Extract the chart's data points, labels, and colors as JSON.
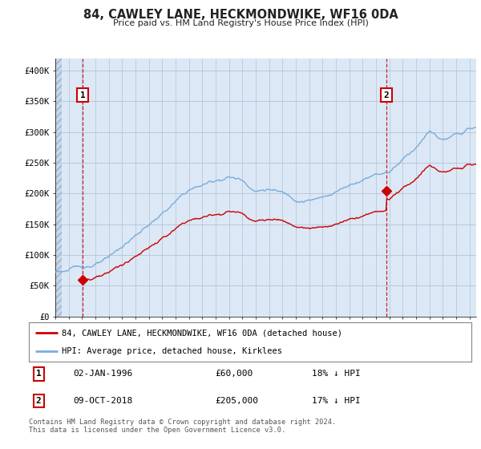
{
  "title": "84, CAWLEY LANE, HECKMONDWIKE, WF16 0DA",
  "subtitle": "Price paid vs. HM Land Registry's House Price Index (HPI)",
  "sale1_date": "02-JAN-1996",
  "sale1_price": 60000,
  "sale1_year": 1996.04,
  "sale1_label": "18% ↓ HPI",
  "sale2_date": "09-OCT-2018",
  "sale2_price": 205000,
  "sale2_year": 2018.77,
  "sale2_label": "17% ↓ HPI",
  "legend_line1": "84, CAWLEY LANE, HECKMONDWIKE, WF16 0DA (detached house)",
  "legend_line2": "HPI: Average price, detached house, Kirklees",
  "footer": "Contains HM Land Registry data © Crown copyright and database right 2024.\nThis data is licensed under the Open Government Licence v3.0.",
  "sale_color": "#cc0000",
  "hpi_color": "#7aacdb",
  "ylim": [
    0,
    420000
  ],
  "yticks": [
    0,
    50000,
    100000,
    150000,
    200000,
    250000,
    300000,
    350000,
    400000
  ],
  "ytick_labels": [
    "£0",
    "£50K",
    "£100K",
    "£150K",
    "£200K",
    "£250K",
    "£300K",
    "£350K",
    "£400K"
  ],
  "plot_bg": "#dce8f5",
  "hatch_bg": "#c8d8e8",
  "grid_color": "#b0c4d8",
  "xstart": 1994,
  "xend": 2025.5
}
